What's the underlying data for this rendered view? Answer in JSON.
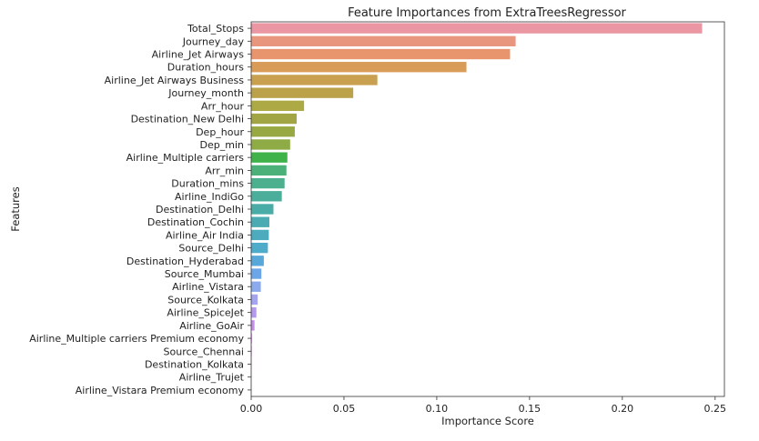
{
  "chart_data": {
    "type": "bar",
    "orientation": "horizontal",
    "title": "Feature Importances from ExtraTreesRegressor",
    "xlabel": "Importance Score",
    "ylabel": "Features",
    "xlim": [
      0,
      0.255
    ],
    "xticks": [
      0.0,
      0.05,
      0.1,
      0.15,
      0.2,
      0.25
    ],
    "xtick_labels": [
      "0.00",
      "0.05",
      "0.10",
      "0.15",
      "0.20",
      "0.25"
    ],
    "grid": false,
    "legend": "none",
    "categories": [
      "Total_Stops",
      "Journey_day",
      "Airline_Jet Airways",
      "Duration_hours",
      "Airline_Jet Airways Business",
      "Journey_month",
      "Arr_hour",
      "Destination_New Delhi",
      "Dep_hour",
      "Dep_min",
      "Airline_Multiple carriers",
      "Arr_min",
      "Duration_mins",
      "Airline_IndiGo",
      "Destination_Delhi",
      "Destination_Cochin",
      "Airline_Air India",
      "Source_Delhi",
      "Destination_Hyderabad",
      "Source_Mumbai",
      "Airline_Vistara",
      "Source_Kolkata",
      "Airline_SpiceJet",
      "Airline_GoAir",
      "Airline_Multiple carriers Premium economy",
      "Source_Chennai",
      "Destination_Kolkata",
      "Airline_Trujet",
      "Airline_Vistara Premium economy"
    ],
    "values": [
      0.243,
      0.1425,
      0.1395,
      0.116,
      0.068,
      0.055,
      0.0285,
      0.0245,
      0.0235,
      0.021,
      0.0195,
      0.019,
      0.018,
      0.0165,
      0.012,
      0.0098,
      0.0095,
      0.009,
      0.0068,
      0.0055,
      0.0052,
      0.0035,
      0.0028,
      0.0018,
      0.0004,
      0.0003,
      0.0002,
      0.0001,
      5e-05
    ],
    "colors": [
      "#ea96a3",
      "#e9967f",
      "#e8956d",
      "#d99b58",
      "#c9a04f",
      "#bba14a",
      "#adaa46",
      "#a2a544",
      "#98a943",
      "#8eab45",
      "#3fb24a",
      "#4cb178",
      "#4caf8e",
      "#4aae9a",
      "#4aaca6",
      "#4aacb2",
      "#4cacbe",
      "#4fabca",
      "#57a7d8",
      "#6da6e6",
      "#8baaed",
      "#a5a4ee",
      "#b699ec",
      "#c78ee8",
      "#d58ae6",
      "#e08ee0",
      "#e692d6",
      "#e899c8",
      "#ea9aba"
    ]
  }
}
